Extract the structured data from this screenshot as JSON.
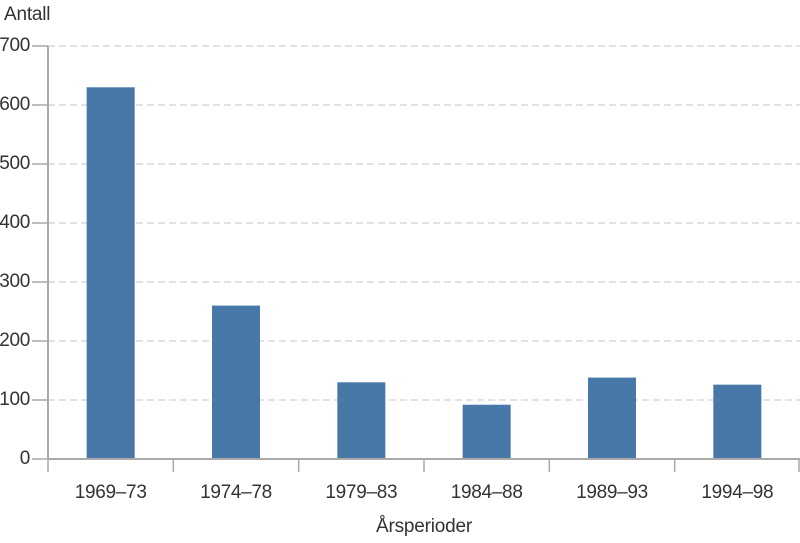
{
  "page": {
    "background": "#ffffff"
  },
  "chart_data": {
    "type": "bar",
    "title": "",
    "ylabel": "Antall",
    "xlabel": "Årsperioder",
    "categories": [
      "1969–73",
      "1974–78",
      "1979–83",
      "1984–88",
      "1989–93",
      "1994–98"
    ],
    "values": [
      630,
      260,
      130,
      92,
      138,
      126
    ],
    "y_ticks": [
      0,
      100,
      200,
      300,
      400,
      500,
      600,
      700
    ],
    "ylim": [
      0,
      700
    ],
    "grid": "horizontal-dashed",
    "legend": "none",
    "colors": {
      "bar": "#4878a8",
      "axis": "#a9a9a9",
      "grid": "#d8d8d8",
      "text": "#333333"
    }
  }
}
